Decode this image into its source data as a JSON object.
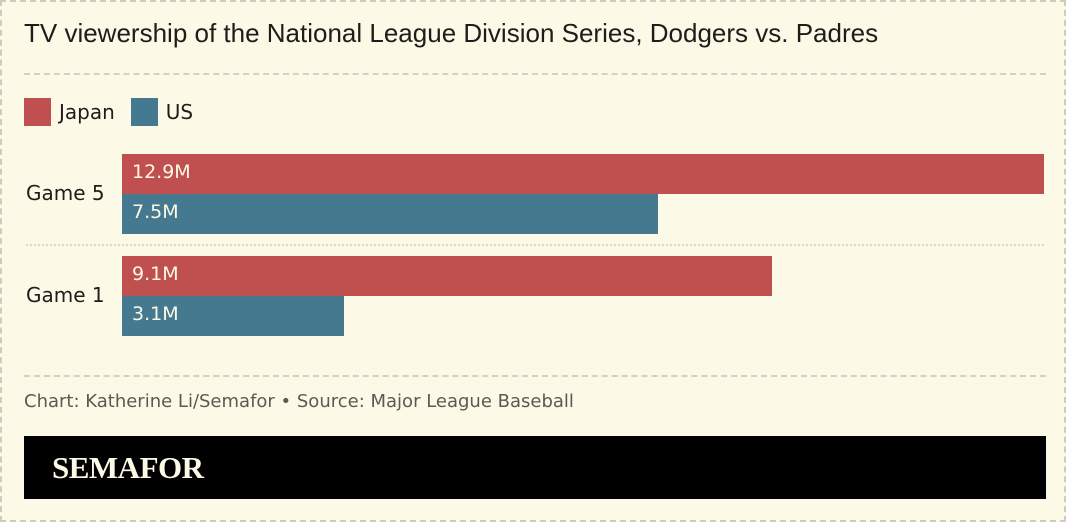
{
  "header": {
    "title": "TV viewership of the National League Division Series, Dodgers vs. Padres"
  },
  "legend": [
    {
      "label": "Japan",
      "color": "#c05050"
    },
    {
      "label": "US",
      "color": "#44798f"
    }
  ],
  "footer": {
    "credit": "Chart: Katherine Li/Semafor • Source: Major League Baseball",
    "brand": "SEMAFOR"
  },
  "chart_data": {
    "type": "bar",
    "orientation": "horizontal",
    "title": "TV viewership of the National League Division Series, Dodgers vs. Padres",
    "xlabel": "",
    "ylabel": "",
    "unit": "millions of viewers",
    "categories": [
      "Game 5",
      "Game 1"
    ],
    "series": [
      {
        "name": "Japan",
        "color": "#c05050",
        "values": [
          12.9,
          9.1
        ],
        "labels": [
          "12.9M",
          "9.1M"
        ]
      },
      {
        "name": "US",
        "color": "#44798f",
        "values": [
          7.5,
          3.1
        ],
        "labels": [
          "7.5M",
          "3.1M"
        ]
      }
    ],
    "xlim": [
      0,
      12.9
    ],
    "grid": false,
    "legend_position": "top-left"
  }
}
